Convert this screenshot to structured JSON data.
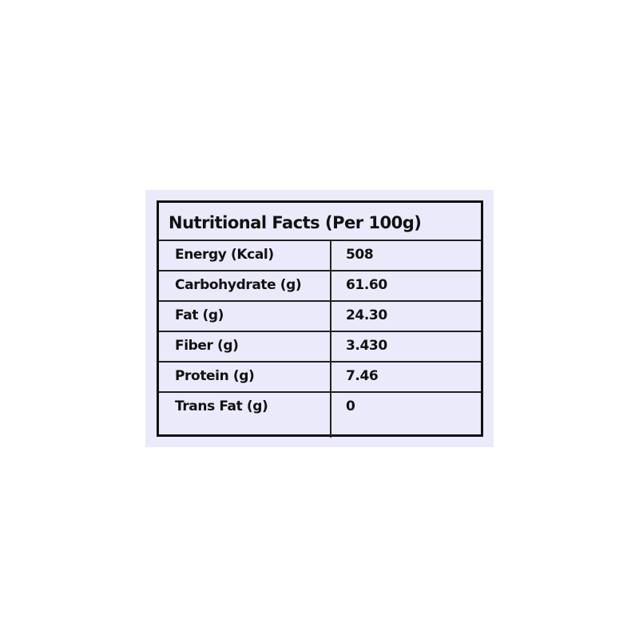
{
  "title": "Nutritional Facts (Per 100g)",
  "rows": [
    {
      "label": "Energy (Kcal)",
      "value": "508"
    },
    {
      "label": "Carbohydrate (g)",
      "value": "61.60"
    },
    {
      "label": "Fat (g)",
      "value": "24.30"
    },
    {
      "label": "Fiber (g)",
      "value": "3.430"
    },
    {
      "label": "Protein (g)",
      "value": "7.46"
    },
    {
      "label": "Trans Fat (g)",
      "value": "0"
    }
  ],
  "colors": {
    "background": "#ebeafb",
    "border": "#111111"
  }
}
